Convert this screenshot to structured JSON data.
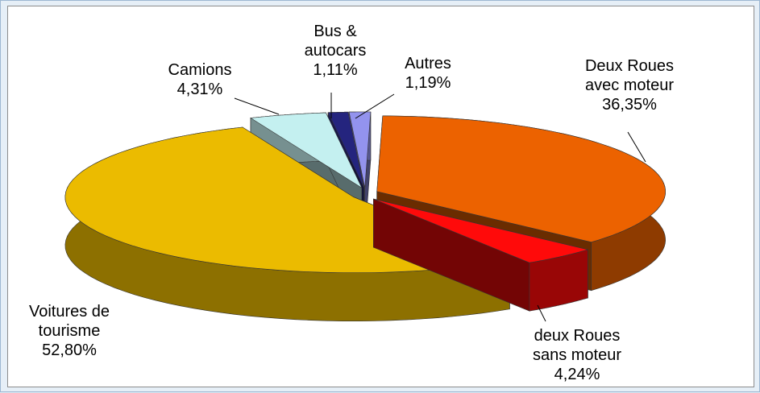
{
  "chart_data": {
    "type": "pie3d",
    "categories": [
      "Deux Roues\navec moteur",
      "deux Roues\nsans moteur",
      "Voitures de\ntourisme",
      "Camions",
      "Bus &\nautocars",
      "Autres"
    ],
    "values": [
      36.35,
      4.24,
      52.8,
      4.31,
      1.11,
      1.19
    ],
    "value_labels": [
      "36,35%",
      "4,24%",
      "52,80%",
      "4,31%",
      "1,11%",
      "1,19%"
    ],
    "colors": [
      "#ec6200",
      "#ff0a0a",
      "#ebbb00",
      "#c4f0f0",
      "#24247e",
      "#9393ee"
    ]
  }
}
